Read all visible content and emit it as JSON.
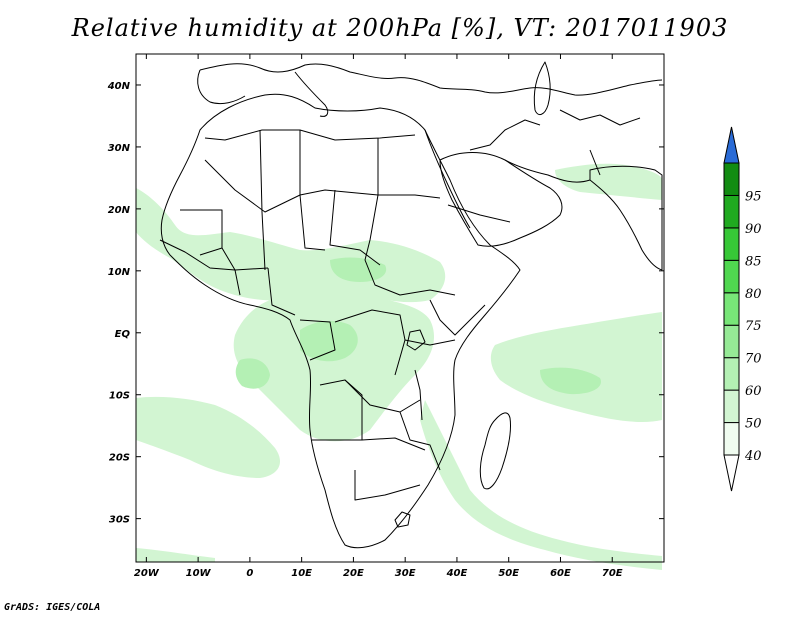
{
  "title": "Relative humidity at 200hPa [%], VT: 2017011903",
  "credit": "GrADS: IGES/COLA",
  "map": {
    "projection": "latlon",
    "lon_range": [
      -22,
      80
    ],
    "lat_range": [
      -37,
      45
    ],
    "x_ticks": [
      {
        "lon": -20,
        "label": "20W"
      },
      {
        "lon": -10,
        "label": "10W"
      },
      {
        "lon": 0,
        "label": "0"
      },
      {
        "lon": 10,
        "label": "10E"
      },
      {
        "lon": 20,
        "label": "20E"
      },
      {
        "lon": 30,
        "label": "30E"
      },
      {
        "lon": 40,
        "label": "40E"
      },
      {
        "lon": 50,
        "label": "50E"
      },
      {
        "lon": 60,
        "label": "60E"
      },
      {
        "lon": 70,
        "label": "70E"
      }
    ],
    "y_ticks": [
      {
        "lat": 40,
        "label": "40N"
      },
      {
        "lat": 30,
        "label": "30N"
      },
      {
        "lat": 20,
        "label": "20N"
      },
      {
        "lat": 10,
        "label": "10N"
      },
      {
        "lat": 0,
        "label": "EQ"
      },
      {
        "lat": -10,
        "label": "10S"
      },
      {
        "lat": -20,
        "label": "20S"
      },
      {
        "lat": -30,
        "label": "30S"
      }
    ]
  },
  "colorbar": {
    "levels": [
      "40",
      "50",
      "60",
      "70",
      "75",
      "80",
      "85",
      "90",
      "95"
    ],
    "colors": [
      "#f0fcf0",
      "#d2f5d2",
      "#b4f0b4",
      "#96ea96",
      "#78e678",
      "#50d750",
      "#37c837",
      "#20aa20",
      "#128c12"
    ],
    "over_color": "#2a6bd6",
    "under_color": "#ffffff"
  },
  "shading": {
    "levels_shown": [
      "50",
      "60"
    ],
    "colors": {
      "50": "#d2f5d2",
      "60": "#b4f0b4"
    }
  }
}
